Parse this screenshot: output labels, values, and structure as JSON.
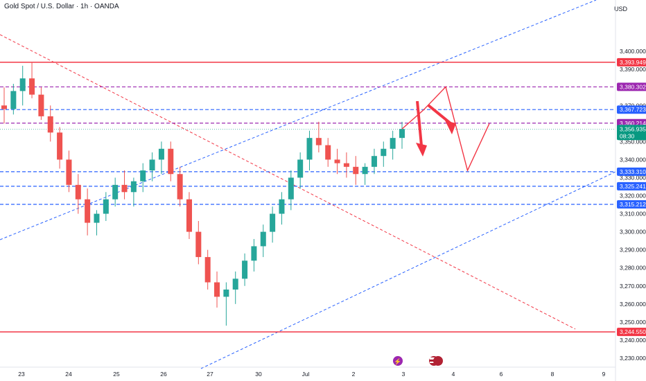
{
  "header": {
    "title": "Gold Spot / U.S. Dollar · 1h · OANDA",
    "currency": "USD"
  },
  "colors": {
    "up": "#26a69a",
    "down": "#ef5350",
    "red_line": "#f23645",
    "purple_line": "#9c27b0",
    "blue_line": "#2962ff",
    "price_tag": "#089981"
  },
  "chart_data": {
    "type": "candlestick",
    "symbol": "Gold Spot / U.S. Dollar",
    "interval": "1h",
    "source": "OANDA",
    "ylim": [
      3225,
      3420
    ],
    "y_ticks": [
      "3,400.000",
      "3,390.000",
      "3,370.000",
      "3,350.000",
      "3,340.000",
      "3,330.000",
      "3,320.000",
      "3,310.000",
      "3,300.000",
      "3,290.000",
      "3,280.000",
      "3,270.000",
      "3,260.000",
      "3,250.000",
      "3,240.000",
      "3,230.000"
    ],
    "x_ticks": [
      "23",
      "24",
      "25",
      "26",
      "27",
      "30",
      "Jul",
      "2",
      "3",
      "4",
      "6",
      "8",
      "9"
    ],
    "levels": [
      {
        "label": "3,393.949",
        "value": 3393.949,
        "style": "solid",
        "color": "red"
      },
      {
        "label": "3,380.302",
        "value": 3380.302,
        "style": "dashed",
        "color": "purple"
      },
      {
        "label": "3,367.723",
        "value": 3367.723,
        "style": "dashed",
        "color": "blue"
      },
      {
        "label": "3,360.214",
        "value": 3360.214,
        "style": "dashed",
        "color": "purple"
      },
      {
        "label": "3,333.310",
        "value": 3333.31,
        "style": "dashed",
        "color": "blue"
      },
      {
        "label": "3,325.241",
        "value": 3325.241,
        "style": "dashed",
        "color": "blue"
      },
      {
        "label": "3,315.212",
        "value": 3315.212,
        "style": "dashed",
        "color": "blue"
      },
      {
        "label": "3,244.550",
        "value": 3244.55,
        "style": "solid",
        "color": "red"
      }
    ],
    "current_price": {
      "label": "3,356.935",
      "value": 3356.935,
      "countdown": "08:30"
    },
    "price_path": [
      [
        3370,
        3380,
        3360,
        3368
      ],
      [
        3368,
        3382,
        3365,
        3378
      ],
      [
        3378,
        3392,
        3370,
        3385
      ],
      [
        3385,
        3394,
        3374,
        3376
      ],
      [
        3376,
        3380,
        3362,
        3364
      ],
      [
        3364,
        3370,
        3350,
        3355
      ],
      [
        3355,
        3358,
        3335,
        3340
      ],
      [
        3340,
        3345,
        3322,
        3326
      ],
      [
        3326,
        3332,
        3310,
        3318
      ],
      [
        3318,
        3324,
        3298,
        3305
      ],
      [
        3305,
        3312,
        3298,
        3310
      ],
      [
        3310,
        3322,
        3306,
        3318
      ],
      [
        3318,
        3330,
        3314,
        3326
      ],
      [
        3326,
        3334,
        3318,
        3322
      ],
      [
        3322,
        3330,
        3314,
        3328
      ],
      [
        3328,
        3338,
        3322,
        3334
      ],
      [
        3334,
        3344,
        3328,
        3340
      ],
      [
        3340,
        3350,
        3332,
        3346
      ],
      [
        3346,
        3350,
        3328,
        3332
      ],
      [
        3332,
        3336,
        3314,
        3318
      ],
      [
        3318,
        3322,
        3296,
        3300
      ],
      [
        3300,
        3306,
        3282,
        3286
      ],
      [
        3286,
        3290,
        3268,
        3272
      ],
      [
        3272,
        3278,
        3258,
        3264
      ],
      [
        3264,
        3272,
        3248,
        3268
      ],
      [
        3268,
        3278,
        3260,
        3274
      ],
      [
        3274,
        3288,
        3270,
        3284
      ],
      [
        3284,
        3296,
        3278,
        3292
      ],
      [
        3292,
        3304,
        3286,
        3300
      ],
      [
        3300,
        3314,
        3294,
        3310
      ],
      [
        3310,
        3322,
        3304,
        3318
      ],
      [
        3318,
        3334,
        3312,
        3330
      ],
      [
        3330,
        3344,
        3324,
        3340
      ],
      [
        3340,
        3356,
        3334,
        3352
      ],
      [
        3352,
        3361,
        3344,
        3348
      ],
      [
        3348,
        3352,
        3336,
        3340
      ],
      [
        3340,
        3346,
        3332,
        3338
      ],
      [
        3338,
        3344,
        3330,
        3336
      ],
      [
        3336,
        3342,
        3326,
        3332
      ],
      [
        3332,
        3338,
        3326,
        3336
      ],
      [
        3336,
        3346,
        3332,
        3342
      ],
      [
        3342,
        3350,
        3336,
        3346
      ],
      [
        3346,
        3356,
        3340,
        3352
      ],
      [
        3352,
        3361,
        3346,
        3357
      ]
    ],
    "projection": [
      {
        "t": 0,
        "p": 3357
      },
      {
        "t": 1,
        "p": 3367.7
      },
      {
        "t": 2,
        "p": 3380.3
      },
      {
        "t": 3,
        "p": 3334
      },
      {
        "t": 4,
        "p": 3360
      }
    ]
  }
}
